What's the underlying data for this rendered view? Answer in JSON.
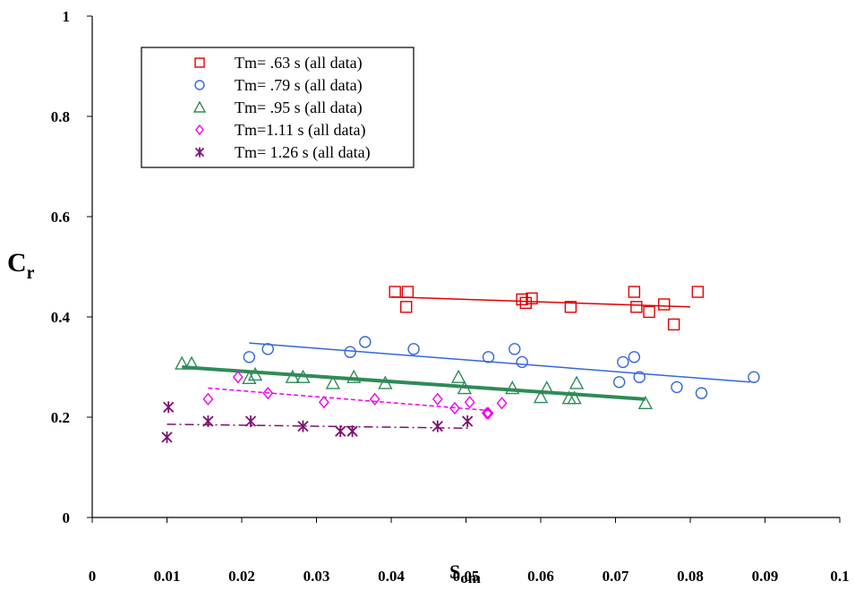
{
  "chart_data": {
    "type": "scatter",
    "title": "",
    "xlabel": "S",
    "xlabel_sub": "om",
    "ylabel": "C",
    "ylabel_sub": "r",
    "xlim": [
      0,
      0.1
    ],
    "ylim": [
      0,
      1
    ],
    "xticks": [
      "0",
      "0.01",
      "0.02",
      "0.03",
      "0.04",
      "0.05",
      "0.06",
      "0.07",
      "0.08",
      "0.09",
      "0.1"
    ],
    "yticks": [
      "0",
      "0.2",
      "0.4",
      "0.6",
      "0.8",
      "1"
    ],
    "legend_position": "top-left",
    "grid": false,
    "series": [
      {
        "name": "Tm= .63 s (all data)",
        "color": "#e00000",
        "marker": "square",
        "points": [
          [
            0.0405,
            0.45
          ],
          [
            0.0422,
            0.45
          ],
          [
            0.042,
            0.42
          ],
          [
            0.0575,
            0.435
          ],
          [
            0.0588,
            0.437
          ],
          [
            0.058,
            0.428
          ],
          [
            0.064,
            0.42
          ],
          [
            0.0725,
            0.45
          ],
          [
            0.0728,
            0.42
          ],
          [
            0.0745,
            0.41
          ],
          [
            0.0765,
            0.425
          ],
          [
            0.0778,
            0.385
          ],
          [
            0.081,
            0.45
          ]
        ],
        "trend": {
          "x": [
            0.04,
            0.08
          ],
          "y": [
            0.44,
            0.42
          ],
          "style": "solid",
          "width": 1.5
        }
      },
      {
        "name": "Tm= .79 s (all data)",
        "color": "#3366dd",
        "marker": "circle",
        "points": [
          [
            0.021,
            0.32
          ],
          [
            0.0235,
            0.336
          ],
          [
            0.0345,
            0.33
          ],
          [
            0.0365,
            0.35
          ],
          [
            0.043,
            0.336
          ],
          [
            0.053,
            0.32
          ],
          [
            0.0565,
            0.336
          ],
          [
            0.0575,
            0.31
          ],
          [
            0.0705,
            0.27
          ],
          [
            0.071,
            0.31
          ],
          [
            0.0725,
            0.32
          ],
          [
            0.0732,
            0.28
          ],
          [
            0.0782,
            0.26
          ],
          [
            0.0815,
            0.248
          ],
          [
            0.0885,
            0.28
          ]
        ],
        "trend": {
          "x": [
            0.021,
            0.088
          ],
          "y": [
            0.348,
            0.27
          ],
          "style": "solid",
          "width": 1.5
        }
      },
      {
        "name": "Tm= .95 s (all data)",
        "color": "#2e8b57",
        "marker": "triangle",
        "points": [
          [
            0.012,
            0.307
          ],
          [
            0.0133,
            0.307
          ],
          [
            0.021,
            0.278
          ],
          [
            0.0218,
            0.285
          ],
          [
            0.0268,
            0.28
          ],
          [
            0.0282,
            0.28
          ],
          [
            0.0322,
            0.268
          ],
          [
            0.035,
            0.28
          ],
          [
            0.0392,
            0.268
          ],
          [
            0.049,
            0.28
          ],
          [
            0.0498,
            0.258
          ],
          [
            0.0562,
            0.258
          ],
          [
            0.06,
            0.24
          ],
          [
            0.0608,
            0.258
          ],
          [
            0.0638,
            0.238
          ],
          [
            0.0645,
            0.238
          ],
          [
            0.0648,
            0.268
          ],
          [
            0.074,
            0.228
          ]
        ],
        "trend": {
          "x": [
            0.012,
            0.074
          ],
          "y": [
            0.3,
            0.236
          ],
          "style": "solid",
          "width": 4
        }
      },
      {
        "name": "Tm=1.11 s (all data)",
        "color": "#ee00ee",
        "marker": "diamond",
        "points": [
          [
            0.0155,
            0.236
          ],
          [
            0.0195,
            0.28
          ],
          [
            0.0235,
            0.248
          ],
          [
            0.031,
            0.23
          ],
          [
            0.0378,
            0.236
          ],
          [
            0.0462,
            0.236
          ],
          [
            0.0485,
            0.218
          ],
          [
            0.0505,
            0.23
          ],
          [
            0.0528,
            0.208
          ],
          [
            0.053,
            0.208
          ],
          [
            0.0548,
            0.228
          ]
        ],
        "trend": {
          "x": [
            0.0155,
            0.0535
          ],
          "y": [
            0.258,
            0.213
          ],
          "style": "dashed",
          "width": 1.5
        }
      },
      {
        "name": "Tm= 1.26 s (all data)",
        "color": "#7b1070",
        "marker": "star",
        "points": [
          [
            0.01,
            0.16
          ],
          [
            0.0102,
            0.22
          ],
          [
            0.0155,
            0.192
          ],
          [
            0.0212,
            0.192
          ],
          [
            0.0282,
            0.182
          ],
          [
            0.0332,
            0.172
          ],
          [
            0.0348,
            0.172
          ],
          [
            0.0462,
            0.182
          ],
          [
            0.0502,
            0.192
          ]
        ],
        "trend": {
          "x": [
            0.01,
            0.0505
          ],
          "y": [
            0.186,
            0.178
          ],
          "style": "dashdot",
          "width": 1.5
        }
      }
    ]
  }
}
